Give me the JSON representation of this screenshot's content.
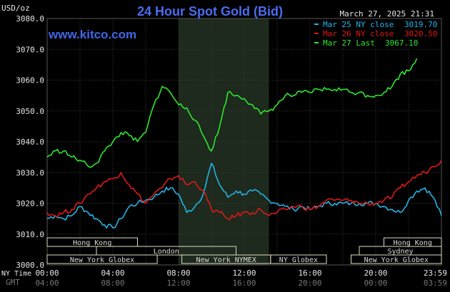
{
  "title": "24 Hour Spot Gold (Bid)",
  "website": "www.kitco.com",
  "timestamp": "March 27, 2025 21:31",
  "colors": {
    "background": "#000000",
    "grid": "#3a3a3a",
    "highlight": "#1d2a1d",
    "market_bar": "#dedcc0",
    "series_cyan": "#22b4e6",
    "series_red": "#e01818",
    "series_green": "#2ee82e"
  },
  "chart_data": {
    "type": "line",
    "title": "24 Hour Spot Gold (Bid)",
    "ylabel": "USD/oz",
    "ylim": [
      3000,
      3080
    ],
    "yticks": [
      "3080.0",
      "3070.0",
      "3060.0",
      "3050.0",
      "3040.0",
      "3030.0",
      "3020.0",
      "3010.0",
      "3000.0"
    ],
    "xlim": [
      0,
      24
    ],
    "x_ny_label": "NY Time",
    "x_gmt_label": "GMT",
    "x_ny_ticks": [
      "00:00",
      "04:00",
      "08:00",
      "12:00",
      "16:00",
      "20:00",
      "23:59"
    ],
    "x_gmt_ticks": [
      "04:00",
      "08:00",
      "12:00",
      "16:00",
      "20:00",
      "00:00",
      "03:59"
    ],
    "highlight_range": [
      8.0,
      13.5
    ],
    "legend_position": "top-right",
    "series": [
      {
        "name": "Mar 25 NY close 3019.70",
        "label_prefix": "Mar 25 NY close",
        "label_value": "3019.70",
        "color": "#22b4e6",
        "x": [
          0,
          0.5,
          1,
          1.5,
          2,
          2.5,
          3,
          3.5,
          4,
          4.5,
          5,
          5.5,
          6,
          6.5,
          7,
          7.5,
          8,
          8.5,
          9,
          9.5,
          10,
          10.5,
          11,
          11.5,
          12,
          12.5,
          13,
          13.5,
          14,
          14.5,
          15,
          15.5,
          16,
          16.5,
          17,
          17.5,
          18,
          18.5,
          19,
          19.5,
          20,
          20.5,
          21,
          21.5,
          22,
          22.5,
          23,
          23.5,
          24
        ],
        "values": [
          3015,
          3016,
          3015,
          3016,
          3019,
          3017,
          3015,
          3013,
          3012,
          3015,
          3019,
          3020,
          3021,
          3022,
          3024,
          3025,
          3023,
          3017,
          3019,
          3023,
          3033,
          3026,
          3022,
          3024,
          3023,
          3024,
          3023,
          3021,
          3020,
          3019,
          3018,
          3019,
          3018,
          3019,
          3020,
          3020,
          3020,
          3020,
          3020,
          3020,
          3020,
          3019,
          3018,
          3017,
          3021,
          3024,
          3025,
          3022,
          3016
        ]
      },
      {
        "name": "Mar 26 NY close 3020.50",
        "label_prefix": "Mar 26 NY close",
        "label_value": "3020.50",
        "color": "#e01818",
        "x": [
          0,
          0.5,
          1,
          1.5,
          2,
          2.5,
          3,
          3.5,
          4,
          4.5,
          5,
          5.5,
          6,
          6.5,
          7,
          7.5,
          8,
          8.5,
          9,
          9.5,
          10,
          10.5,
          11,
          11.5,
          12,
          12.5,
          13,
          13.5,
          14,
          14.5,
          15,
          15.5,
          16,
          16.5,
          17,
          17.5,
          18,
          18.5,
          19,
          19.5,
          20,
          20.5,
          21,
          21.5,
          22,
          22.5,
          23,
          23.5,
          24
        ],
        "values": [
          3017,
          3016,
          3017,
          3018,
          3020,
          3023,
          3025,
          3027,
          3028,
          3030,
          3026,
          3023,
          3020,
          3023,
          3025,
          3028,
          3029,
          3026,
          3027,
          3024,
          3018,
          3017,
          3015,
          3016,
          3017,
          3017,
          3018,
          3016,
          3017,
          3018,
          3019,
          3019,
          3018,
          3019,
          3021,
          3021,
          3021,
          3021,
          3020,
          3020,
          3020,
          3021,
          3022,
          3025,
          3027,
          3029,
          3030,
          3032,
          3034
        ]
      },
      {
        "name": "Mar 27 Last 3067.10",
        "label_prefix": "Mar 27 Last",
        "label_value": "3067.10",
        "color": "#2ee82e",
        "x": [
          0,
          0.5,
          1,
          1.5,
          2,
          2.5,
          3,
          3.5,
          4,
          4.5,
          5,
          5.5,
          6,
          6.5,
          7,
          7.5,
          8,
          8.5,
          9,
          9.5,
          10,
          10.5,
          11,
          11.5,
          12,
          12.5,
          13,
          13.5,
          14,
          14.5,
          15,
          15.5,
          16,
          16.5,
          17,
          17.5,
          18,
          18.5,
          19,
          19.5,
          20,
          20.5,
          21,
          21.5,
          22,
          22.5
        ],
        "values": [
          3035,
          3037,
          3037,
          3035,
          3034,
          3032,
          3033,
          3037,
          3040,
          3043,
          3042,
          3040,
          3043,
          3052,
          3058,
          3056,
          3052,
          3051,
          3047,
          3042,
          3037,
          3045,
          3056,
          3055,
          3054,
          3052,
          3049,
          3050,
          3052,
          3055,
          3055,
          3056,
          3056,
          3057,
          3057,
          3057,
          3057,
          3056,
          3056,
          3055,
          3055,
          3056,
          3058,
          3062,
          3063,
          3067
        ]
      }
    ]
  },
  "markets": {
    "row1": [
      {
        "label": "Hong Kong",
        "start": 0,
        "end": 5.5
      },
      {
        "label": "Hong Kong",
        "start": 20.5,
        "end": 24
      }
    ],
    "row2": [
      {
        "label": "London",
        "start": 3,
        "end": 11.5
      },
      {
        "label": "Sydney",
        "start": 19,
        "end": 24
      }
    ],
    "row3": [
      {
        "label": "New York Globex",
        "start": 0,
        "end": 6.7
      },
      {
        "label": "New York NYMEX",
        "start": 8.2,
        "end": 13.6
      },
      {
        "label": "NY Globex",
        "start": 13.6,
        "end": 17
      },
      {
        "label": "New York Globex",
        "start": 18.5,
        "end": 24
      }
    ]
  }
}
